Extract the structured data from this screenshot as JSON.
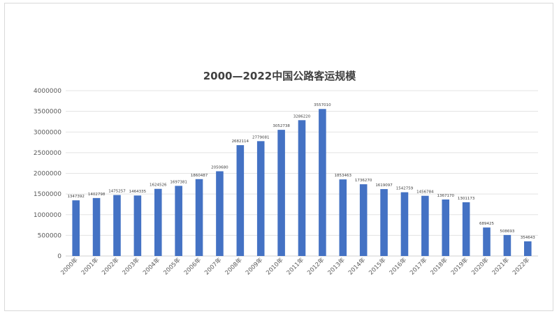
{
  "chart_data": {
    "type": "bar",
    "title": "2000—2022中国公路客运规模",
    "categories": [
      "2000年",
      "2001年",
      "2002年",
      "2003年",
      "2004年",
      "2005年",
      "2006年",
      "2007年",
      "2008年",
      "2009年",
      "2010年",
      "2011年",
      "2012年",
      "2013年",
      "2014年",
      "2015年",
      "2016年",
      "2017年",
      "2018年",
      "2019年",
      "2020年",
      "2021年",
      "2022年"
    ],
    "values": [
      1347392,
      1402798,
      1475257,
      1464335,
      1624526,
      1697381,
      1860487,
      2050680,
      2682114,
      2779081,
      3052738,
      3286220,
      3557010,
      1853463,
      1736270,
      1619097,
      1542759,
      1456784,
      1367170,
      1301173,
      689425,
      508693,
      354643
    ],
    "value_labels": [
      "1347392",
      "1402798",
      "1475257",
      "1464335",
      "1624526",
      "1697381",
      "1860487",
      "2050680",
      "2682114",
      "2779081",
      "3052738",
      "3286220",
      "3557010",
      "1853463",
      "1736270",
      "1619097",
      "1542759",
      "1456784",
      "1367170",
      "1301173",
      "689425",
      "508693",
      "354643"
    ],
    "ylim": [
      0,
      4000000
    ],
    "yticks": [
      "0",
      "500000",
      "1000000",
      "1500000",
      "2000000",
      "2500000",
      "3000000",
      "3500000",
      "4000000"
    ],
    "xlabel": "",
    "ylabel": "",
    "grid": true,
    "legend": "none",
    "bar_color": "#4472c4"
  }
}
